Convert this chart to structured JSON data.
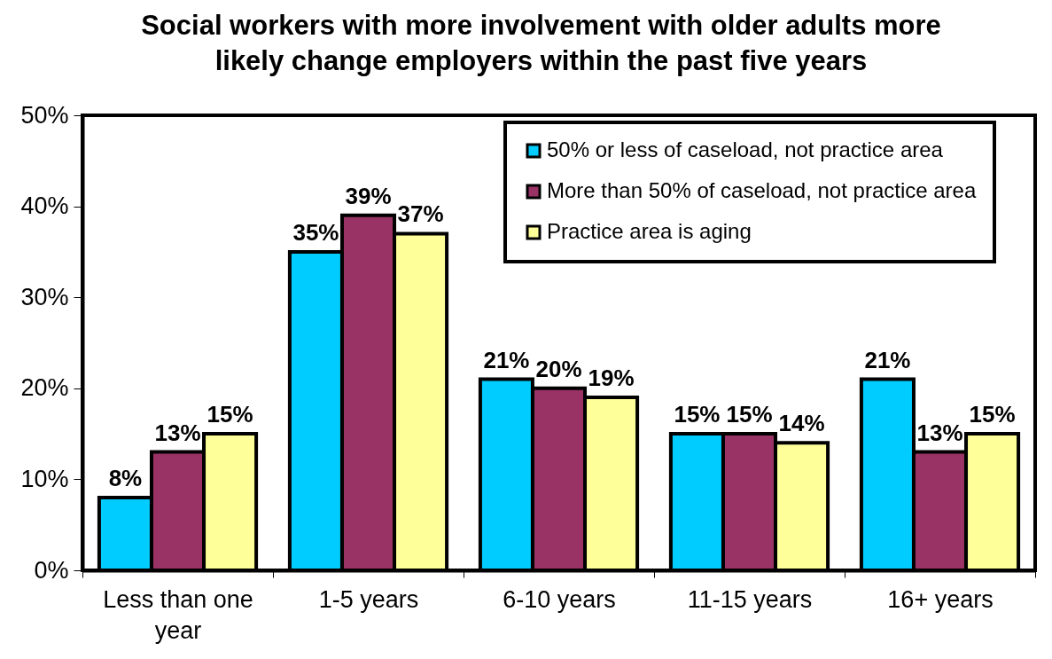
{
  "chart_data": {
    "type": "bar",
    "title": "Social workers with more involvement with older adults more likely change employers within the past five years",
    "categories": [
      "Less than one year",
      "1-5 years",
      "6-10 years",
      "11-15 years",
      "16+ years"
    ],
    "series": [
      {
        "name": "50% or less of caseload, not practice area",
        "color": "#00ccff",
        "values": [
          8,
          35,
          21,
          15,
          21
        ],
        "value_labels": [
          "8%",
          "35%",
          "21%",
          "15%",
          "21%"
        ]
      },
      {
        "name": "More than 50% of caseload, not practice area",
        "color": "#993366",
        "values": [
          13,
          39,
          20,
          15,
          13
        ],
        "value_labels": [
          "13%",
          "39%",
          "20%",
          "15%",
          "13%"
        ]
      },
      {
        "name": "Practice area is aging",
        "color": "#ffff99",
        "values": [
          15,
          37,
          19,
          14,
          15
        ],
        "value_labels": [
          "15%",
          "37%",
          "19%",
          "14%",
          "15%"
        ]
      }
    ],
    "ylim": [
      0,
      50
    ],
    "yticks": [
      {
        "value": 0,
        "label": "0%"
      },
      {
        "value": 10,
        "label": "10%"
      },
      {
        "value": 20,
        "label": "20%"
      },
      {
        "value": 30,
        "label": "30%"
      },
      {
        "value": 40,
        "label": "40%"
      },
      {
        "value": 50,
        "label": "50%"
      }
    ],
    "legend": "top right"
  }
}
